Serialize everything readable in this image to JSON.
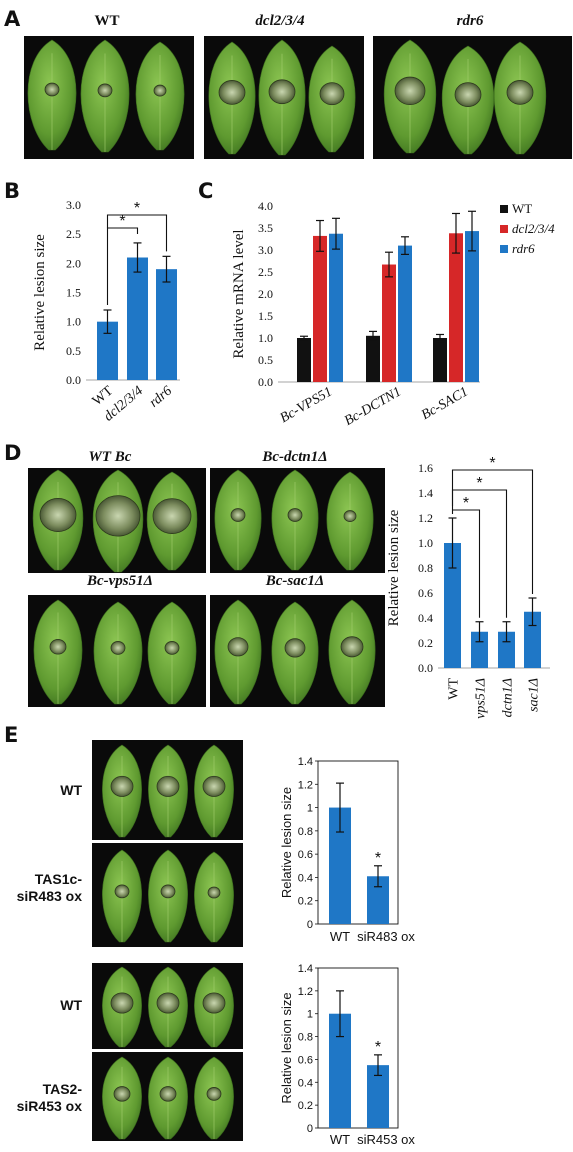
{
  "panel_labels": {
    "a": "A",
    "b": "B",
    "c": "C",
    "d": "D",
    "e": "E"
  },
  "panel_a": {
    "titles": [
      "WT",
      "dcl2/3/4",
      "rdr6"
    ]
  },
  "panel_d": {
    "titles": [
      "WT Bc",
      "Bc-dctn1Δ",
      "Bc-vps51Δ",
      "Bc-sac1Δ"
    ]
  },
  "panel_e": {
    "row_labels": {
      "wt1": "WT",
      "tas1c_1": "TAS1c-",
      "tas1c_2": "siR483 ox",
      "wt2": "WT",
      "tas2_1": "TAS2-",
      "tas2_2": "siR453 ox"
    }
  },
  "colors": {
    "blue": "#1f77c6",
    "red": "#d62728",
    "black": "#111111",
    "leaf": "#6fa83a",
    "photo_bg": "#0a0a0a"
  },
  "chart_data": [
    {
      "id": "B",
      "type": "bar",
      "categories": [
        "WT",
        "dcl2/3/4",
        "rdr6"
      ],
      "values": [
        1.0,
        2.1,
        1.9
      ],
      "errors": [
        0.2,
        0.25,
        0.22
      ],
      "ylabel": "Relative lesion size",
      "ylim": [
        0,
        3.0
      ],
      "yticks": [
        "0.0",
        "0.5",
        "1.0",
        "1.5",
        "2.0",
        "2.5",
        "3.0"
      ],
      "significance": [
        "*",
        "*"
      ],
      "color": "#1f77c6"
    },
    {
      "id": "C",
      "type": "bar",
      "categories": [
        "Bc-VPS51",
        "Bc-DCTN1",
        "Bc-SAC1"
      ],
      "series": [
        {
          "name": "WT",
          "color": "#111111",
          "values": [
            1.0,
            1.05,
            1.0
          ],
          "errors": [
            0.04,
            0.1,
            0.08
          ]
        },
        {
          "name": "dcl2/3/4",
          "color": "#d62728",
          "values": [
            3.32,
            2.67,
            3.38
          ],
          "errors": [
            0.35,
            0.28,
            0.45
          ]
        },
        {
          "name": "rdr6",
          "color": "#1f77c6",
          "values": [
            3.37,
            3.1,
            3.43
          ],
          "errors": [
            0.35,
            0.2,
            0.45
          ]
        }
      ],
      "ylabel": "Relative mRNA level",
      "ylim": [
        0,
        4.0
      ],
      "yticks": [
        "0.0",
        "0.5",
        "1.0",
        "1.5",
        "2.0",
        "2.5",
        "3.0",
        "3.5",
        "4.0"
      ]
    },
    {
      "id": "D",
      "type": "bar",
      "categories": [
        "WT",
        "vps51Δ",
        "dctn1Δ",
        "sac1Δ"
      ],
      "values": [
        1.0,
        0.29,
        0.29,
        0.45
      ],
      "errors": [
        0.2,
        0.08,
        0.08,
        0.11
      ],
      "ylabel": "Relative lesion size",
      "ylim": [
        0,
        1.6
      ],
      "yticks": [
        "0.0",
        "0.2",
        "0.4",
        "0.6",
        "0.8",
        "1.0",
        "1.2",
        "1.4",
        "1.6"
      ],
      "significance": [
        "*",
        "*",
        "*"
      ],
      "color": "#1f77c6"
    },
    {
      "id": "E1",
      "type": "bar",
      "categories": [
        "WT",
        "siR483 ox"
      ],
      "values": [
        1.0,
        0.41
      ],
      "errors": [
        0.21,
        0.09
      ],
      "ylabel": "Relative lesion size",
      "ylim": [
        0,
        1.4
      ],
      "yticks": [
        "0",
        "0.2",
        "0.4",
        "0.6",
        "0.8",
        "1",
        "1.2",
        "1.4"
      ],
      "significance": [
        "*"
      ],
      "color": "#1f77c6"
    },
    {
      "id": "E2",
      "type": "bar",
      "categories": [
        "WT",
        "siR453 ox"
      ],
      "values": [
        1.0,
        0.55
      ],
      "errors": [
        0.2,
        0.09
      ],
      "ylabel": "Relative lesion size",
      "ylim": [
        0,
        1.4
      ],
      "yticks": [
        "0",
        "0.2",
        "0.4",
        "0.6",
        "0.8",
        "1",
        "1.2",
        "1.4"
      ],
      "significance": [
        "*"
      ],
      "color": "#1f77c6"
    }
  ]
}
